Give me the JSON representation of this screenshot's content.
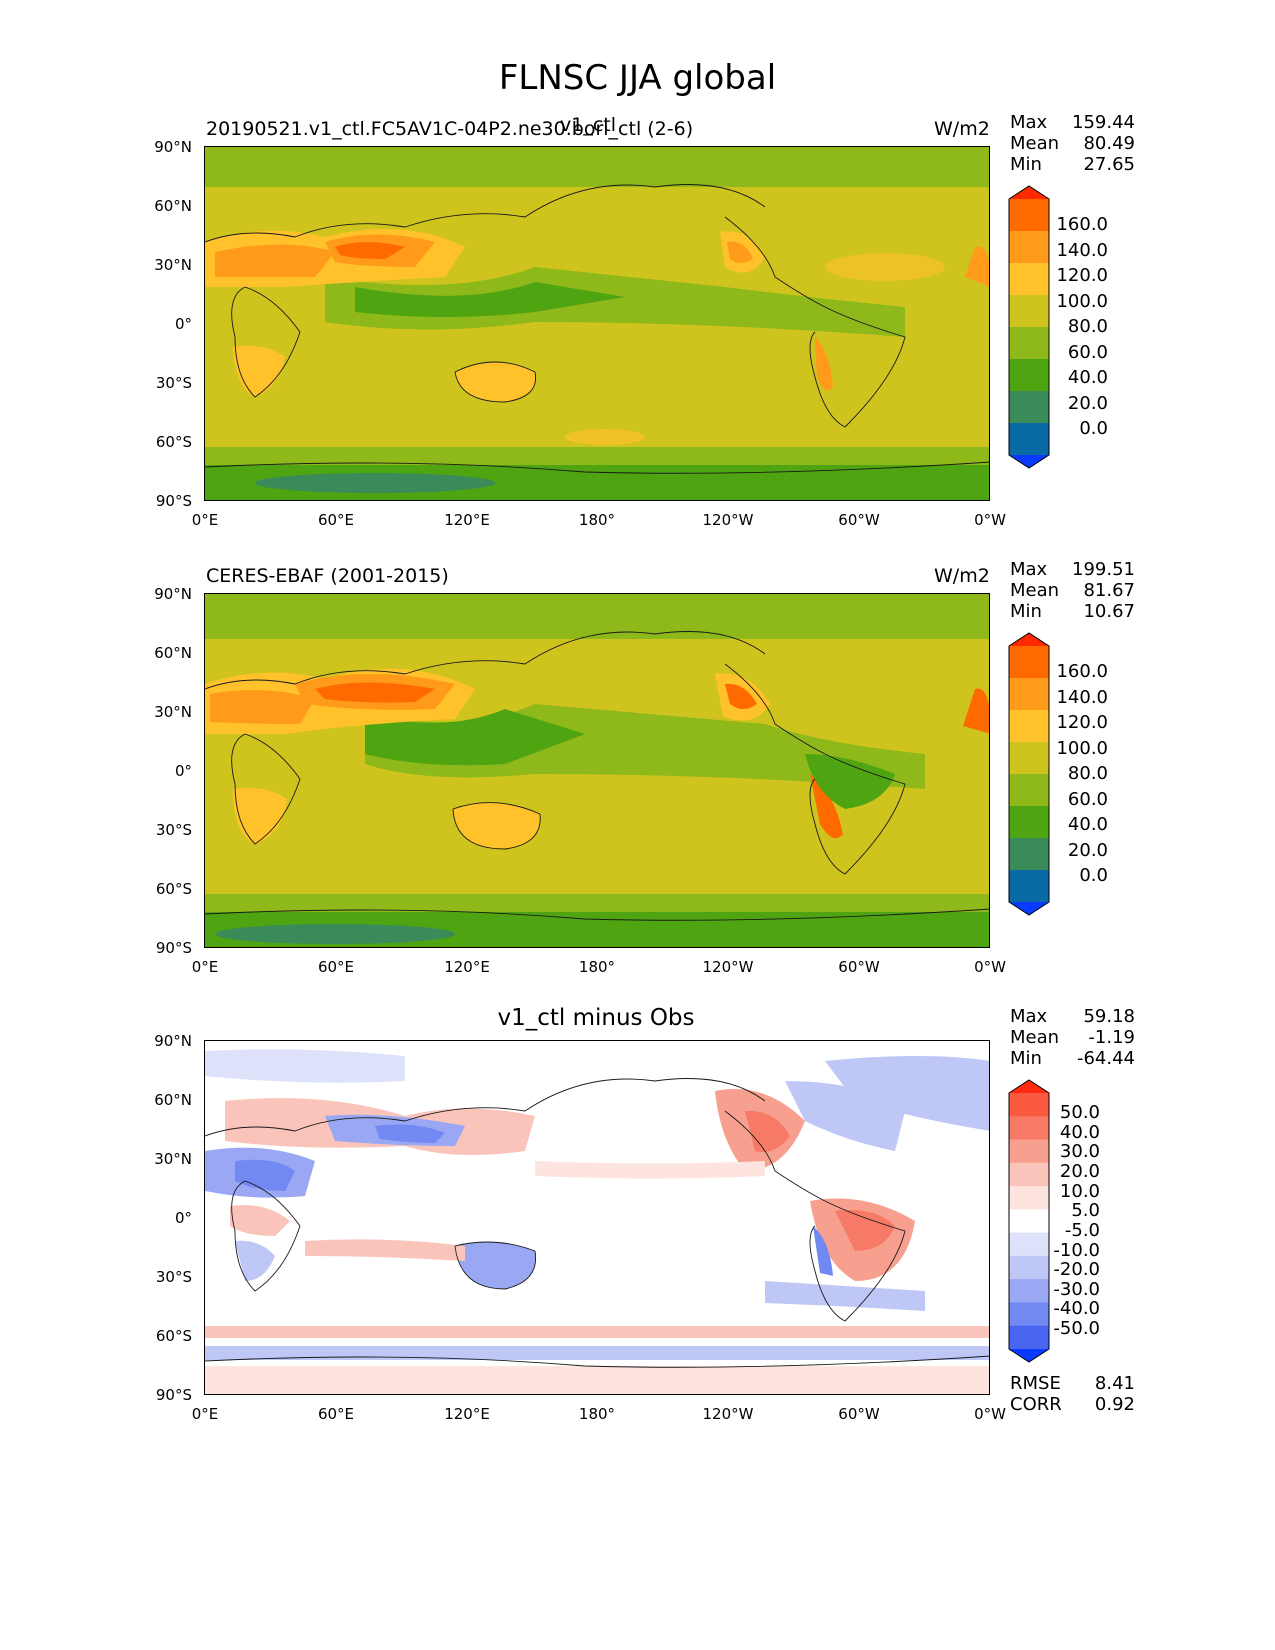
{
  "figure": {
    "title": "FLNSC JJA global"
  },
  "panels": [
    {
      "id": "test",
      "title_left": "20190521.v1_ctl.FC5AV1C-04P2.ne30.bori_ctl (2-6)",
      "title_center": "v1_ctl",
      "units": "W/m2",
      "stats": [
        {
          "label": "Max",
          "value": "159.44"
        },
        {
          "label": "Mean",
          "value": "80.49"
        },
        {
          "label": "Min",
          "value": "27.65"
        }
      ],
      "colorbar": {
        "labels": [
          "160.0",
          "140.0",
          "120.0",
          "100.0",
          "80.0",
          "60.0",
          "40.0",
          "20.0",
          "0.0"
        ],
        "colors": [
          "#ff2a00",
          "#ff6a00",
          "#ff9a1a",
          "#ffc22a",
          "#cfc41e",
          "#8fb81a",
          "#4ea511",
          "#3a8a5a",
          "#0a6aa5",
          "#0a3aff"
        ]
      }
    },
    {
      "id": "ref",
      "title_left": "CERES-EBAF (2001-2015)",
      "units": "W/m2",
      "stats": [
        {
          "label": "Max",
          "value": "199.51"
        },
        {
          "label": "Mean",
          "value": "81.67"
        },
        {
          "label": "Min",
          "value": "10.67"
        }
      ],
      "colorbar": {
        "labels": [
          "160.0",
          "140.0",
          "120.0",
          "100.0",
          "80.0",
          "60.0",
          "40.0",
          "20.0",
          "0.0"
        ],
        "colors": [
          "#ff2a00",
          "#ff6a00",
          "#ff9a1a",
          "#ffc22a",
          "#cfc41e",
          "#8fb81a",
          "#4ea511",
          "#3a8a5a",
          "#0a6aa5",
          "#0a3aff"
        ]
      }
    },
    {
      "id": "diff",
      "title_center": "v1_ctl minus Obs",
      "stats": [
        {
          "label": "Max",
          "value": "59.18"
        },
        {
          "label": "Mean",
          "value": "-1.19"
        },
        {
          "label": "Min",
          "value": "-64.44"
        }
      ],
      "metrics": [
        {
          "label": "RMSE",
          "value": "8.41"
        },
        {
          "label": "CORR",
          "value": "0.92"
        }
      ],
      "colorbar": {
        "labels": [
          "50.0",
          "40.0",
          "30.0",
          "20.0",
          "10.0",
          "5.0",
          "-5.0",
          "-10.0",
          "-20.0",
          "-30.0",
          "-40.0",
          "-50.0"
        ],
        "colors": [
          "#ff2a10",
          "#fa5a40",
          "#f77a66",
          "#f8a090",
          "#fac4ba",
          "#fde4de",
          "#ffffff",
          "#dde2fa",
          "#bfc7f7",
          "#9aa8f4",
          "#7288f2",
          "#4a66f0",
          "#0a3aff"
        ]
      }
    }
  ],
  "axes": {
    "lat_ticks": [
      "90°N",
      "60°N",
      "30°N",
      "0°",
      "30°S",
      "60°S",
      "90°S"
    ],
    "lon_ticks": [
      "0°E",
      "60°E",
      "120°E",
      "180°",
      "120°W",
      "60°W",
      "0°W"
    ]
  }
}
